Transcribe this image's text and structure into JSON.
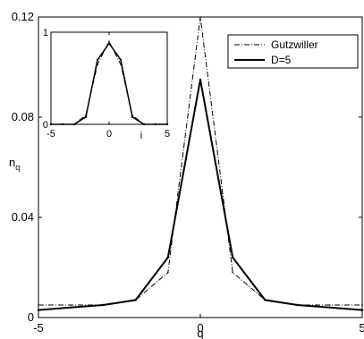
{
  "chart_data": [
    {
      "type": "line",
      "xlabel": "q",
      "ylabel": "n",
      "ylabel_subscript": "q",
      "xlim": [
        -5,
        5
      ],
      "ylim": [
        0,
        0.12
      ],
      "x_ticks": [
        -5,
        0,
        5
      ],
      "y_ticks": [
        0,
        0.04,
        0.08,
        0.12
      ],
      "x_tick_labels": [
        "-5",
        "0",
        "5"
      ],
      "y_tick_labels": [
        "0",
        "0.04",
        "0.08",
        "0.12"
      ],
      "grid": false,
      "legend": "top-right",
      "series": [
        {
          "name": "Gutzwiller",
          "style": "dash-dot",
          "color": "#000000",
          "x": [
            -5,
            -4,
            -3,
            -2,
            -1,
            0,
            1,
            2,
            3,
            4,
            5
          ],
          "y": [
            0.005,
            0.005,
            0.005,
            0.007,
            0.018,
            0.12,
            0.018,
            0.007,
            0.005,
            0.005,
            0.005
          ]
        },
        {
          "name": "D=5",
          "style": "solid",
          "color": "#000000",
          "x": [
            -5,
            -4,
            -3,
            -2,
            -1,
            0,
            1,
            2,
            3,
            4,
            5
          ],
          "y": [
            0.003,
            0.004,
            0.005,
            0.007,
            0.024,
            0.095,
            0.024,
            0.007,
            0.005,
            0.004,
            0.003
          ]
        }
      ]
    },
    {
      "type": "line",
      "xlabel": "i",
      "ylabel": "",
      "xlim": [
        -5,
        5
      ],
      "ylim": [
        0,
        1
      ],
      "x_ticks": [
        -5,
        0,
        5
      ],
      "y_ticks": [
        0,
        1
      ],
      "x_tick_labels": [
        "-5",
        "0",
        "5"
      ],
      "y_tick_labels": [
        "0",
        "1"
      ],
      "grid": false,
      "series": [
        {
          "style": "dash-dot",
          "color": "#000000",
          "x": [
            -5,
            -4,
            -3,
            -2,
            -1,
            0,
            1,
            2,
            3,
            4,
            5
          ],
          "y": [
            0,
            0,
            0,
            0.1,
            0.65,
            0.9,
            0.65,
            0.1,
            0,
            0,
            0
          ]
        },
        {
          "style": "solid",
          "color": "#000000",
          "x": [
            -5,
            -4,
            -3,
            -2,
            -1,
            0,
            1,
            2,
            3,
            4,
            5
          ],
          "y": [
            0,
            0,
            0,
            0.08,
            0.7,
            0.88,
            0.7,
            0.08,
            0,
            0,
            0
          ]
        }
      ]
    }
  ]
}
